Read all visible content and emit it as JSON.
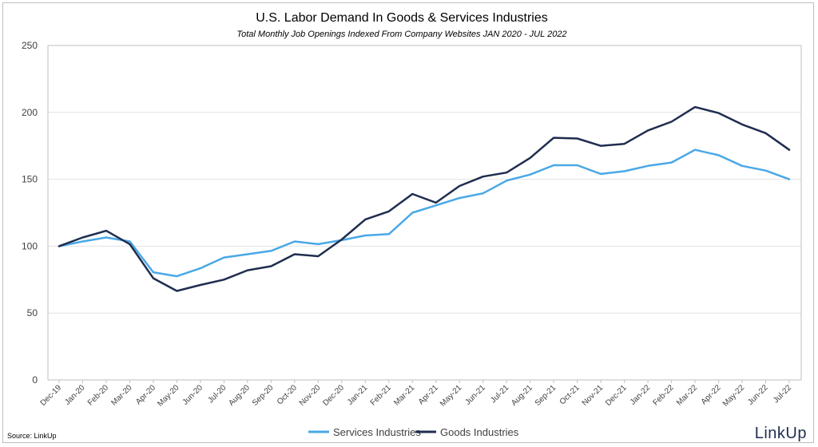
{
  "chart_data": {
    "type": "line",
    "title": "U.S. Labor Demand In Goods & Services Industries",
    "subtitle": "Total Monthly Job Openings Indexed From Company Websites JAN 2020 - JUL 2022",
    "xlabel": "",
    "ylabel": "",
    "ylim": [
      0,
      250
    ],
    "yticks": [
      "0",
      "50",
      "100",
      "150",
      "200",
      "250"
    ],
    "grid": true,
    "legend_position": "bottom",
    "categories": [
      "Dec-19",
      "Jan-20",
      "Feb-20",
      "Mar-20",
      "Apr-20",
      "May-20",
      "Jun-20",
      "Jul-20",
      "Aug-20",
      "Sep-20",
      "Oct-20",
      "Nov-20",
      "Dec-20",
      "Jan-21",
      "Feb-21",
      "Mar-21",
      "Apr-21",
      "May-21",
      "Jun-21",
      "Jul-21",
      "Aug-21",
      "Sep-21",
      "Oct-21",
      "Nov-21",
      "Dec-21",
      "Jan-22",
      "Feb-22",
      "Mar-22",
      "Apr-22",
      "May-22",
      "Jun-22",
      "Jul-22"
    ],
    "series": [
      {
        "name": "Services Industries",
        "color": "#4aa8e6",
        "values": [
          100,
          103.5,
          106.5,
          103.5,
          80.5,
          77.5,
          83.5,
          91.5,
          94,
          96.5,
          103.5,
          101.5,
          104.5,
          108,
          109,
          125,
          130.5,
          136,
          139.5,
          149,
          153.5,
          160.5,
          160.5,
          154,
          156,
          160,
          162.5,
          172,
          168,
          160,
          156.5,
          150
        ]
      },
      {
        "name": "Goods Industries",
        "color": "#1f2d4f",
        "values": [
          100,
          106.5,
          111.5,
          101.5,
          76,
          66.5,
          71,
          75,
          82,
          85,
          94,
          92.5,
          105,
          120,
          126,
          139,
          132.5,
          145,
          152,
          155,
          166,
          181,
          180.5,
          175,
          176.5,
          186.5,
          193,
          204,
          199.5,
          191,
          184.5,
          172
        ]
      }
    ]
  },
  "footer": {
    "source": "Source: LinkUp",
    "logo_text": "LinkUp"
  }
}
